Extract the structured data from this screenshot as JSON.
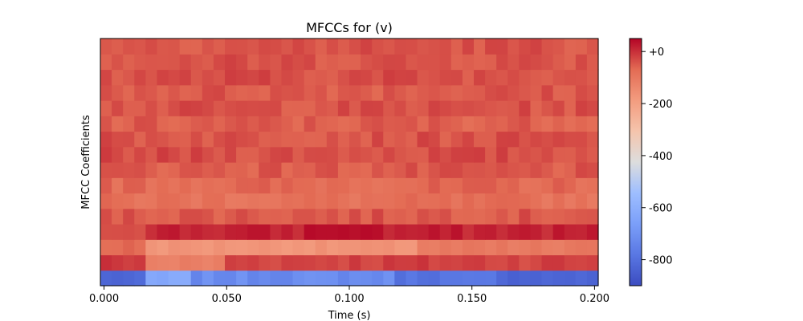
{
  "chart_data": {
    "type": "heatmap",
    "title": "MFCCs for (v)",
    "xlabel": "Time (s)",
    "ylabel": "MFCC Coefficients",
    "xlim": [
      -0.0015,
      0.2015
    ],
    "x_ticks": [
      0.0,
      0.05,
      0.1,
      0.15,
      0.2
    ],
    "x_tick_labels": [
      "0.000",
      "0.050",
      "0.100",
      "0.150",
      "0.200"
    ],
    "n_coefficients": 16,
    "n_frames": 44,
    "colormap": "coolwarm",
    "colorbar": {
      "vmin": -900,
      "vmax": 50,
      "ticks": [
        0,
        -200,
        -400,
        -600,
        -800
      ],
      "tick_labels": [
        "+0",
        "-200",
        "-400",
        "-600",
        "-800"
      ]
    },
    "rows": [
      {
        "coefficient": 0,
        "mean": -760,
        "pattern": "first frames about -830; 0.015-0.035 s about -640; rest about -730; after 0.12 s about -820"
      },
      {
        "coefficient": 1,
        "mean": -40,
        "pattern": "early frames near 0; 0.015-0.05 s about -120; later values -20 to 20"
      },
      {
        "coefficient": 2,
        "mean": -150,
        "pattern": "first frames about -70; 0.015-0.13 s about -170; later about -110"
      },
      {
        "coefficient": 3,
        "mean": 20,
        "pattern": "strongest band, up to 40 near 0.085-0.11 s"
      },
      {
        "coefficient": 4,
        "mean": -45
      },
      {
        "coefficient": 5,
        "mean": -85
      },
      {
        "coefficient": 6,
        "mean": -70
      },
      {
        "coefficient": 7,
        "mean": -50
      },
      {
        "coefficient": 8,
        "mean": -35
      },
      {
        "coefficient": 9,
        "mean": -40
      },
      {
        "coefficient": 10,
        "mean": -55
      },
      {
        "coefficient": 11,
        "mean": -40
      },
      {
        "coefficient": 12,
        "mean": -45
      },
      {
        "coefficient": 13,
        "mean": -35
      },
      {
        "coefficient": 14,
        "mean": -40
      },
      {
        "coefficient": 15,
        "mean": -40
      }
    ]
  }
}
